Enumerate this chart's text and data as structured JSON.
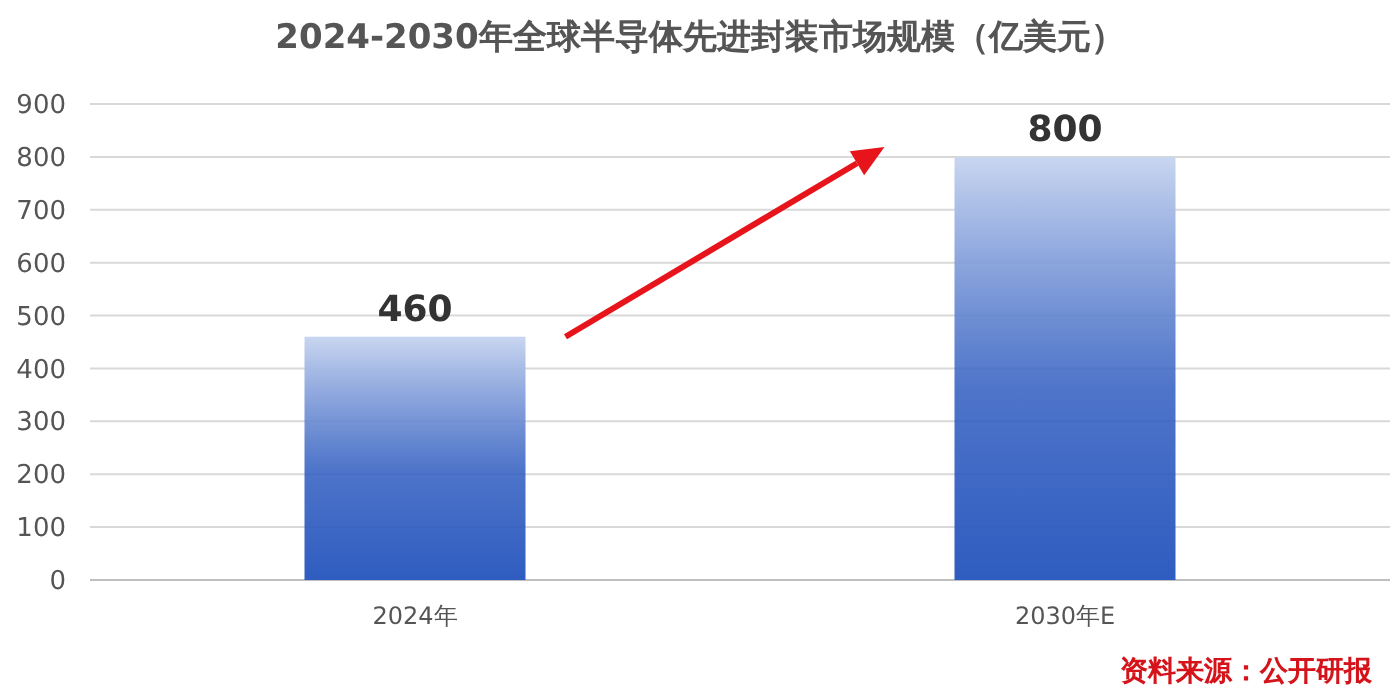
{
  "chart_data": {
    "type": "bar",
    "title": "2024-2030年全球半导体先进封装市场规模（亿美元）",
    "categories": [
      "2024年",
      "2030年E"
    ],
    "values": [
      460,
      800
    ],
    "color": "#2f5cc0",
    "ylim": [
      0,
      900
    ],
    "yticks": [
      0,
      100,
      200,
      300,
      400,
      500,
      600,
      700,
      800,
      900
    ],
    "grid": "y",
    "data_labels": true,
    "annotations": [
      "资料来源：公开研报"
    ]
  }
}
